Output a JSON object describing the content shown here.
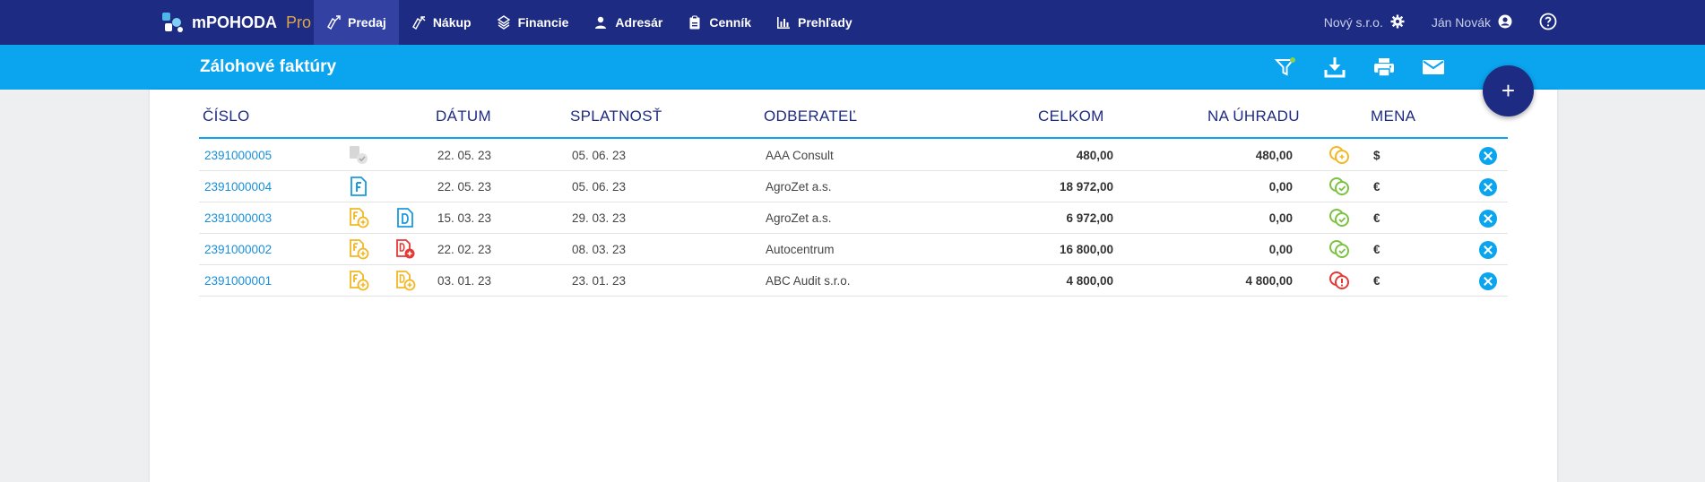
{
  "app": {
    "name": "mPOHODA",
    "edition": "Pro"
  },
  "nav": {
    "items": [
      {
        "label": "Predaj",
        "icon": "invoice-out-icon",
        "active": true
      },
      {
        "label": "Nákup",
        "icon": "invoice-in-icon",
        "active": false
      },
      {
        "label": "Financie",
        "icon": "finance-icon",
        "active": false
      },
      {
        "label": "Adresár",
        "icon": "person-icon",
        "active": false
      },
      {
        "label": "Cenník",
        "icon": "clipboard-icon",
        "active": false
      },
      {
        "label": "Prehľady",
        "icon": "bar-chart-icon",
        "active": false
      }
    ],
    "company": "Nový s.r.o.",
    "user": "Ján Novák"
  },
  "page": {
    "title": "Zálohové faktúry",
    "toolbar_icons": [
      "filter-icon",
      "download-icon",
      "print-icon",
      "mail-icon"
    ],
    "fab_label": "+"
  },
  "table": {
    "columns": {
      "cislo": "ČÍSLO",
      "datum": "DÁTUM",
      "splatnost": "SPLATNOSŤ",
      "odberatel": "ODBERATEĽ",
      "celkom": "CELKOM",
      "na_uhradu": "NA ÚHRADU",
      "mena": "MENA"
    },
    "rows": [
      {
        "cislo": "2391000005",
        "datum": "22. 05. 23",
        "splatnost": "05. 06. 23",
        "odberatel": "AAA Consult",
        "celkom": "480,00",
        "na_uhradu": "480,00",
        "mena": "$",
        "doc1": "doc-pending-gray-icon",
        "doc2": "",
        "status": "payment-unpaid-yellow-icon"
      },
      {
        "cislo": "2391000004",
        "datum": "22. 05. 23",
        "splatnost": "05. 06. 23",
        "odberatel": "AgroZet a.s.",
        "celkom": "18 972,00",
        "na_uhradu": "0,00",
        "mena": "€",
        "doc1": "doc-f-blue-icon",
        "doc2": "",
        "status": "payment-paid-green-icon"
      },
      {
        "cislo": "2391000003",
        "datum": "15. 03. 23",
        "splatnost": "29. 03. 23",
        "odberatel": "AgroZet a.s.",
        "celkom": "6 972,00",
        "na_uhradu": "0,00",
        "mena": "€",
        "doc1": "doc-f-plus-yellow-icon",
        "doc2": "doc-d-blue-icon",
        "status": "payment-paid-green-icon"
      },
      {
        "cislo": "2391000002",
        "datum": "22. 02. 23",
        "splatnost": "08. 03. 23",
        "odberatel": "Autocentrum",
        "celkom": "16 800,00",
        "na_uhradu": "0,00",
        "mena": "€",
        "doc1": "doc-f-plus-yellow-icon",
        "doc2": "doc-d-plus-red-icon",
        "status": "payment-paid-green-icon"
      },
      {
        "cislo": "2391000001",
        "datum": "03. 01. 23",
        "splatnost": "23. 01. 23",
        "odberatel": "ABC Audit s.r.o.",
        "celkom": "4 800,00",
        "na_uhradu": "4 800,00",
        "mena": "€",
        "doc1": "doc-f-plus-yellow-icon",
        "doc2": "doc-d-plus-yellow-icon",
        "status": "payment-overdue-red-icon"
      }
    ]
  },
  "colors": {
    "navbar": "#1e2b82",
    "subbar": "#0aa4ef",
    "accent_yellow": "#f2b824",
    "accent_green": "#7cc242",
    "accent_red": "#e53935",
    "link": "#1a8fd8"
  }
}
